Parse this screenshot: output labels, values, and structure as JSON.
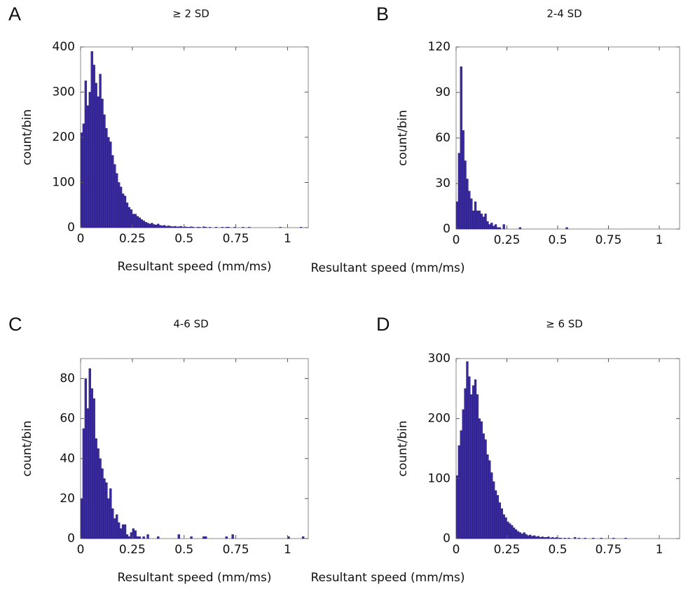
{
  "chart_data": [
    {
      "type": "histogram",
      "panel_label": "A",
      "title": "≥ 2 SD",
      "x_label": "Resultant speed (mm/ms)",
      "y_label": "count/bin",
      "color": "#3b2ba3",
      "bins": [
        0,
        0.01,
        0.02,
        0.03,
        0.04,
        0.05,
        0.06,
        0.07,
        0.08,
        0.09,
        0.1,
        0.11,
        0.12,
        0.13,
        0.14,
        0.15,
        0.16,
        0.17,
        0.18,
        0.19,
        0.2,
        0.21,
        0.22,
        0.23,
        0.24,
        0.25,
        0.26,
        0.27,
        0.28,
        0.29,
        0.3,
        0.31,
        0.32,
        0.33,
        0.34,
        0.35,
        0.36,
        0.37,
        0.38,
        0.39,
        0.4,
        0.41,
        0.42,
        0.43,
        0.44,
        0.45,
        0.46,
        0.47,
        0.48,
        0.49,
        0.5,
        0.51,
        0.52,
        0.53,
        0.54,
        0.55,
        0.56,
        0.57,
        0.58,
        0.59,
        0.6,
        0.61,
        0.62,
        0.63,
        0.64,
        0.65,
        0.66,
        0.67,
        0.68,
        0.69,
        0.7,
        0.71,
        0.72,
        0.73,
        0.74,
        0.75,
        0.76,
        0.77,
        0.78,
        0.79,
        0.8,
        0.81,
        0.82,
        0.83,
        0.84,
        0.85,
        0.86,
        0.87,
        0.88,
        0.89,
        0.9,
        0.91,
        0.92,
        0.93,
        0.94,
        0.95,
        0.96,
        0.97,
        0.98,
        0.99,
        1,
        1.01,
        1.02,
        1.03,
        1.04,
        1.05,
        1.06,
        1.07,
        1.08,
        1.09,
        1.1
      ],
      "counts": [
        210,
        230,
        325,
        270,
        300,
        390,
        360,
        320,
        290,
        340,
        285,
        250,
        220,
        200,
        190,
        160,
        140,
        120,
        100,
        90,
        75,
        70,
        55,
        45,
        40,
        30,
        30,
        25,
        22,
        18,
        15,
        12,
        10,
        8,
        10,
        7,
        6,
        8,
        5,
        4,
        5,
        3,
        4,
        3,
        2,
        3,
        2,
        2,
        3,
        1,
        2,
        1,
        1,
        2,
        1,
        0,
        1,
        1,
        0,
        2,
        1,
        0,
        1,
        0,
        0,
        1,
        0,
        0,
        1,
        0,
        1,
        1,
        0,
        0,
        1,
        0,
        0,
        0,
        1,
        0,
        0,
        1,
        0,
        0,
        0,
        0,
        0,
        0,
        0,
        0,
        0,
        0,
        0,
        0,
        0,
        0,
        1,
        0,
        0,
        0,
        0,
        0,
        0,
        0,
        0,
        0,
        1,
        0,
        0,
        0
      ],
      "xlim": [
        0,
        1.1
      ],
      "xticks": [
        0,
        0.25,
        0.5,
        0.75,
        1
      ],
      "ylim": [
        0,
        400
      ],
      "yticks": [
        0,
        100,
        200,
        300,
        400
      ]
    },
    {
      "type": "histogram",
      "panel_label": "B",
      "title": "2-4 SD",
      "x_label": "Resultant speed (mm/ms)",
      "y_label": "count/bin",
      "color": "#3b2ba3",
      "bins": [
        0,
        0.01,
        0.02,
        0.03,
        0.04,
        0.05,
        0.06,
        0.07,
        0.08,
        0.09,
        0.1,
        0.11,
        0.12,
        0.13,
        0.14,
        0.15,
        0.16,
        0.17,
        0.18,
        0.19,
        0.2,
        0.21,
        0.22,
        0.23,
        0.24,
        0.25,
        0.26,
        0.27,
        0.28,
        0.29,
        0.3,
        0.31,
        0.32,
        0.33,
        0.34,
        0.35,
        0.36,
        0.37,
        0.38,
        0.39,
        0.4,
        0.41,
        0.42,
        0.43,
        0.44,
        0.45,
        0.46,
        0.47,
        0.48,
        0.49,
        0.5,
        0.51,
        0.52,
        0.53,
        0.54,
        0.55,
        0.56,
        0.57,
        0.58,
        0.59,
        0.6,
        0.61,
        0.62,
        0.63,
        0.64,
        0.65,
        0.66,
        0.67,
        0.68,
        0.69,
        0.7,
        0.71,
        0.72,
        0.73,
        0.74,
        0.75,
        0.76,
        0.77,
        0.78,
        0.79,
        0.8,
        0.81,
        0.82,
        0.83,
        0.84,
        0.85,
        0.86,
        0.87,
        0.88,
        0.89,
        0.9,
        0.91,
        0.92,
        0.93,
        0.94,
        0.95,
        0.96,
        0.97,
        0.98,
        0.99,
        1,
        1.01,
        1.02,
        1.03,
        1.04,
        1.05,
        1.06,
        1.07,
        1.08,
        1.09,
        1.1
      ],
      "counts": [
        18,
        50,
        107,
        65,
        45,
        33,
        25,
        20,
        12,
        18,
        12,
        12,
        10,
        8,
        10,
        5,
        3,
        4,
        2,
        3,
        1,
        1,
        0,
        3,
        0,
        0,
        0,
        0,
        0,
        0,
        0,
        1,
        0,
        0,
        0,
        0,
        0,
        0,
        0,
        0,
        0,
        0,
        0,
        0,
        0,
        0,
        0,
        0,
        0,
        0,
        0,
        0,
        0,
        0,
        1,
        0,
        0,
        0,
        0,
        0,
        0,
        0,
        0,
        0,
        0,
        0,
        0,
        0,
        0,
        0,
        0,
        0,
        0,
        0,
        0,
        0,
        0,
        0,
        0,
        0,
        0,
        0,
        0,
        0,
        0,
        0,
        0,
        0,
        0,
        0,
        0,
        0,
        0,
        0,
        0,
        0,
        0,
        0,
        0,
        0,
        0,
        0,
        0,
        0,
        0,
        0,
        0,
        0,
        0,
        0
      ],
      "xlim": [
        0,
        1.1
      ],
      "xticks": [
        0,
        0.25,
        0.5,
        0.75,
        1
      ],
      "ylim": [
        0,
        120
      ],
      "yticks": [
        0,
        30,
        60,
        90,
        120
      ]
    },
    {
      "type": "histogram",
      "panel_label": "C",
      "title": "4-6 SD",
      "x_label": "Resultant speed (mm/ms)",
      "y_label": "count/bin",
      "color": "#3b2ba3",
      "bins": [
        0,
        0.01,
        0.02,
        0.03,
        0.04,
        0.05,
        0.06,
        0.07,
        0.08,
        0.09,
        0.1,
        0.11,
        0.12,
        0.13,
        0.14,
        0.15,
        0.16,
        0.17,
        0.18,
        0.19,
        0.2,
        0.21,
        0.22,
        0.23,
        0.24,
        0.25,
        0.26,
        0.27,
        0.28,
        0.29,
        0.3,
        0.31,
        0.32,
        0.33,
        0.34,
        0.35,
        0.36,
        0.37,
        0.38,
        0.39,
        0.4,
        0.41,
        0.42,
        0.43,
        0.44,
        0.45,
        0.46,
        0.47,
        0.48,
        0.49,
        0.5,
        0.51,
        0.52,
        0.53,
        0.54,
        0.55,
        0.56,
        0.57,
        0.58,
        0.59,
        0.6,
        0.61,
        0.62,
        0.63,
        0.64,
        0.65,
        0.66,
        0.67,
        0.68,
        0.69,
        0.7,
        0.71,
        0.72,
        0.73,
        0.74,
        0.75,
        0.76,
        0.77,
        0.78,
        0.79,
        0.8,
        0.81,
        0.82,
        0.83,
        0.84,
        0.85,
        0.86,
        0.87,
        0.88,
        0.89,
        0.9,
        0.91,
        0.92,
        0.93,
        0.94,
        0.95,
        0.96,
        0.97,
        0.98,
        0.99,
        1,
        1.01,
        1.02,
        1.03,
        1.04,
        1.05,
        1.06,
        1.07,
        1.08,
        1.09,
        1.1
      ],
      "counts": [
        20,
        55,
        80,
        65,
        85,
        75,
        70,
        50,
        45,
        40,
        35,
        30,
        28,
        20,
        25,
        15,
        10,
        12,
        8,
        5,
        7,
        7,
        2,
        1,
        3,
        5,
        4,
        1,
        1,
        0,
        1,
        0,
        2,
        0,
        0,
        0,
        0,
        1,
        0,
        0,
        0,
        0,
        0,
        0,
        0,
        0,
        0,
        2,
        0,
        0,
        0,
        0,
        0,
        1,
        0,
        0,
        0,
        0,
        0,
        1,
        1,
        0,
        0,
        0,
        0,
        0,
        0,
        0,
        0,
        0,
        1,
        0,
        0,
        2,
        0,
        0,
        0,
        0,
        0,
        0,
        0,
        0,
        0,
        0,
        0,
        0,
        0,
        0,
        0,
        0,
        0,
        0,
        0,
        0,
        0,
        0,
        0,
        0,
        0,
        0,
        1,
        0,
        0,
        0,
        0,
        0,
        0,
        1,
        0,
        0
      ],
      "xlim": [
        0,
        1.1
      ],
      "xticks": [
        0,
        0.25,
        0.5,
        0.75,
        1
      ],
      "ylim": [
        0,
        90
      ],
      "yticks": [
        0,
        20,
        40,
        60,
        80
      ]
    },
    {
      "type": "histogram",
      "panel_label": "D",
      "title": "≥ 6 SD",
      "x_label": "Resultant speed (mm/ms)",
      "y_label": "count/bin",
      "color": "#3b2ba3",
      "bins": [
        0,
        0.01,
        0.02,
        0.03,
        0.04,
        0.05,
        0.06,
        0.07,
        0.08,
        0.09,
        0.1,
        0.11,
        0.12,
        0.13,
        0.14,
        0.15,
        0.16,
        0.17,
        0.18,
        0.19,
        0.2,
        0.21,
        0.22,
        0.23,
        0.24,
        0.25,
        0.26,
        0.27,
        0.28,
        0.29,
        0.3,
        0.31,
        0.32,
        0.33,
        0.34,
        0.35,
        0.36,
        0.37,
        0.38,
        0.39,
        0.4,
        0.41,
        0.42,
        0.43,
        0.44,
        0.45,
        0.46,
        0.47,
        0.48,
        0.49,
        0.5,
        0.51,
        0.52,
        0.53,
        0.54,
        0.55,
        0.56,
        0.57,
        0.58,
        0.59,
        0.6,
        0.61,
        0.62,
        0.63,
        0.64,
        0.65,
        0.66,
        0.67,
        0.68,
        0.69,
        0.7,
        0.71,
        0.72,
        0.73,
        0.74,
        0.75,
        0.76,
        0.77,
        0.78,
        0.79,
        0.8,
        0.81,
        0.82,
        0.83,
        0.84,
        0.85,
        0.86,
        0.87,
        0.88,
        0.89,
        0.9,
        0.91,
        0.92,
        0.93,
        0.94,
        0.95,
        0.96,
        0.97,
        0.98,
        0.99,
        1,
        1.01,
        1.02,
        1.03,
        1.04,
        1.05,
        1.06,
        1.07,
        1.08,
        1.09,
        1.1
      ],
      "counts": [
        105,
        155,
        180,
        215,
        250,
        295,
        270,
        240,
        255,
        265,
        240,
        200,
        195,
        175,
        165,
        140,
        130,
        110,
        95,
        80,
        72,
        60,
        50,
        40,
        35,
        28,
        25,
        22,
        18,
        15,
        12,
        10,
        8,
        10,
        7,
        5,
        6,
        4,
        5,
        3,
        4,
        2,
        3,
        2,
        2,
        3,
        1,
        2,
        1,
        2,
        1,
        1,
        0,
        1,
        0,
        1,
        0,
        0,
        2,
        0,
        1,
        0,
        0,
        1,
        0,
        0,
        0,
        1,
        0,
        0,
        0,
        1,
        0,
        0,
        0,
        0,
        0,
        1,
        0,
        0,
        0,
        0,
        0,
        1,
        0,
        0,
        0,
        0,
        0,
        0,
        0,
        0,
        0,
        0,
        0,
        0,
        0,
        0,
        0,
        0,
        0,
        0,
        0,
        0,
        0,
        0,
        0,
        0,
        0,
        0
      ],
      "xlim": [
        0,
        1.1
      ],
      "xticks": [
        0,
        0.25,
        0.5,
        0.75,
        1
      ],
      "ylim": [
        0,
        300
      ],
      "yticks": [
        0,
        100,
        200,
        300
      ]
    }
  ]
}
